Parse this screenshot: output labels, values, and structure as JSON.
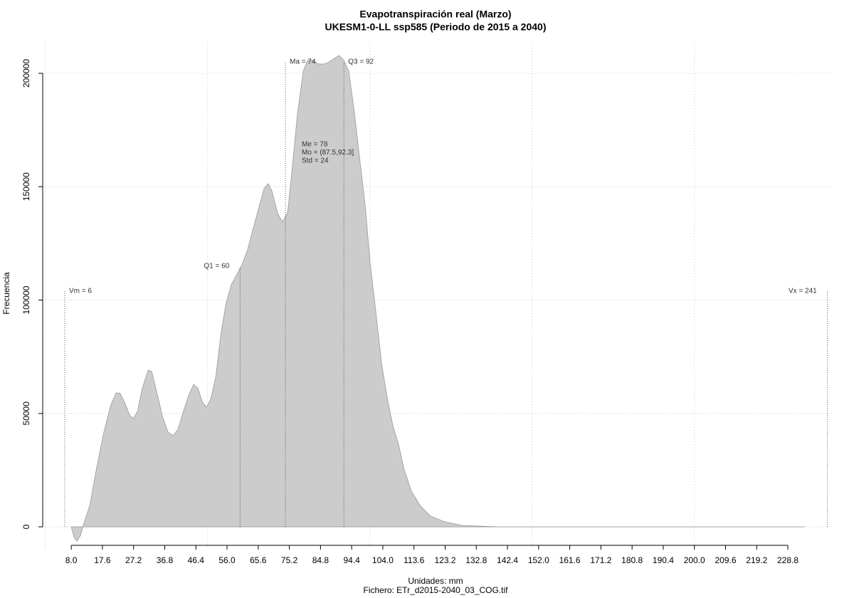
{
  "chart_data": {
    "type": "area",
    "title": "Evapotranspiración real (Marzo)",
    "subtitle": "UKESM1-0-LL ssp585 (Periodo de 2015 a 2040)",
    "xlabel": "Unidades: mm",
    "caption": "Fichero: ETr_d2015-2040_03_COG.tif",
    "ylabel": "Frecuencia",
    "color": "#cccccc",
    "line_color": "#999999",
    "x": [
      8.0,
      8.9,
      9.75,
      10.85,
      11.9,
      13.7,
      15.7,
      17.9,
      20.1,
      21.8,
      23.0,
      24.4,
      26.0,
      27.1,
      28.4,
      29.9,
      31.7,
      32.8,
      34.3,
      36.1,
      37.8,
      39.4,
      40.9,
      42.4,
      44.2,
      45.7,
      47.0,
      48.4,
      49.7,
      51.0,
      52.5,
      54.1,
      55.6,
      57.3,
      59.1,
      60.6,
      62.4,
      64.1,
      65.9,
      67.4,
      68.7,
      69.8,
      71.6,
      73.1,
      74.7,
      76.0,
      77.7,
      79.5,
      80.8,
      82.6,
      84.1,
      85.9,
      87.4,
      89.1,
      90.5,
      92.0,
      93.5,
      95.3,
      96.8,
      98.6,
      100.1,
      101.9,
      103.6,
      105.4,
      107.1,
      108.9,
      110.6,
      112.8,
      115.5,
      118.7,
      123.1,
      128.6,
      139.6,
      233.9
    ],
    "values": [
      0,
      -4700,
      -6300,
      -3800,
      1600,
      9400,
      25100,
      40800,
      53400,
      59000,
      59000,
      55000,
      49300,
      47700,
      50900,
      61200,
      69100,
      68500,
      59700,
      48700,
      41800,
      40200,
      43000,
      50200,
      58100,
      62800,
      61200,
      55000,
      52800,
      56500,
      65900,
      84800,
      98000,
      106800,
      111500,
      115600,
      122500,
      131900,
      141300,
      149200,
      151300,
      148200,
      138200,
      134400,
      138800,
      157000,
      182100,
      201000,
      205700,
      205700,
      204100,
      204100,
      205000,
      206600,
      207900,
      205700,
      201000,
      182100,
      163300,
      141300,
      116200,
      94200,
      72200,
      56500,
      44600,
      36100,
      25100,
      15700,
      9400,
      4700,
      2200,
      600,
      0,
      0
    ],
    "xlim": [
      -0.8,
      242.6
    ],
    "ylim": [
      -9400,
      213500
    ],
    "xticks": [
      {
        "value": 8,
        "label": "8.0"
      },
      17.6,
      27.2,
      36.8,
      46.4,
      {
        "value": 56,
        "label": "56.0"
      },
      65.6,
      75.2,
      84.8,
      94.4,
      {
        "value": 104,
        "label": "104.0"
      },
      113.6,
      123.2,
      132.8,
      142.4,
      {
        "value": 152,
        "label": "152.0"
      },
      161.6,
      171.2,
      180.8,
      190.4,
      {
        "value": 200,
        "label": "200.0"
      },
      209.6,
      219.2,
      228.8
    ],
    "yticks": [
      0,
      50000,
      100000,
      150000,
      200000
    ],
    "xgrid": [
      0,
      50,
      100,
      150,
      200
    ],
    "grid": true,
    "annotations": [
      {
        "label": "Vm = 6",
        "value": 6,
        "y": 104000,
        "side": "right"
      },
      {
        "label": "Q1 = 60",
        "value": 60,
        "y": 114900,
        "side": "left"
      },
      {
        "label": "Ma = 74",
        "value": 74,
        "y": 205000,
        "side": "right"
      },
      {
        "label": "Q3 = 92",
        "value": 92,
        "y": 205000,
        "side": "right"
      },
      {
        "label": "Vx = 241",
        "value": 241,
        "y": 104000,
        "side": "left"
      }
    ],
    "stats": [
      "Me = 78",
      "Mo = (87.5,92.3]",
      "Std = 24"
    ]
  }
}
